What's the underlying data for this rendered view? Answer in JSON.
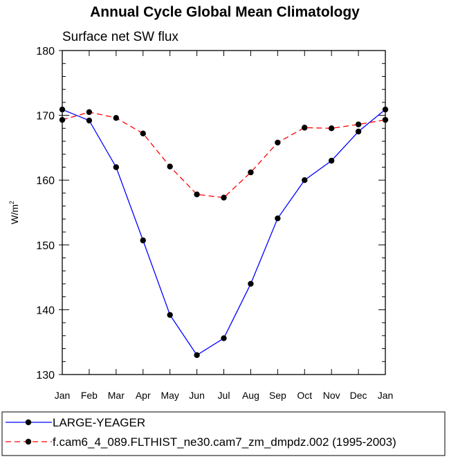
{
  "chart_data": {
    "type": "line",
    "title": "Annual Cycle Global Mean Climatology",
    "subtitle": "Surface net SW flux",
    "ylabel": "W/m",
    "ylabel_sup": "2",
    "xlabel": "",
    "categories": [
      "Jan",
      "Feb",
      "Mar",
      "Apr",
      "May",
      "Jun",
      "Jul",
      "Aug",
      "Sep",
      "Oct",
      "Nov",
      "Dec",
      "Jan"
    ],
    "ylim": [
      130,
      180
    ],
    "yticks": [
      130,
      140,
      150,
      160,
      170,
      180
    ],
    "series": [
      {
        "name": "LARGE-YEAGER",
        "color": "#0000ff",
        "dash": "solid",
        "values": [
          170.9,
          169.2,
          162.0,
          150.7,
          139.2,
          133.0,
          135.6,
          144.0,
          154.1,
          160.0,
          163.0,
          167.5,
          170.9
        ]
      },
      {
        "name": "f.cam6_4_089.FLTHIST_ne30.cam7_zm_dmpdz.002 (1995-2003)",
        "color": "#ff0000",
        "dash": "dashed",
        "values": [
          169.3,
          170.5,
          169.6,
          167.2,
          162.1,
          157.8,
          157.3,
          161.2,
          165.8,
          168.1,
          168.0,
          168.6,
          169.3
        ]
      }
    ]
  }
}
